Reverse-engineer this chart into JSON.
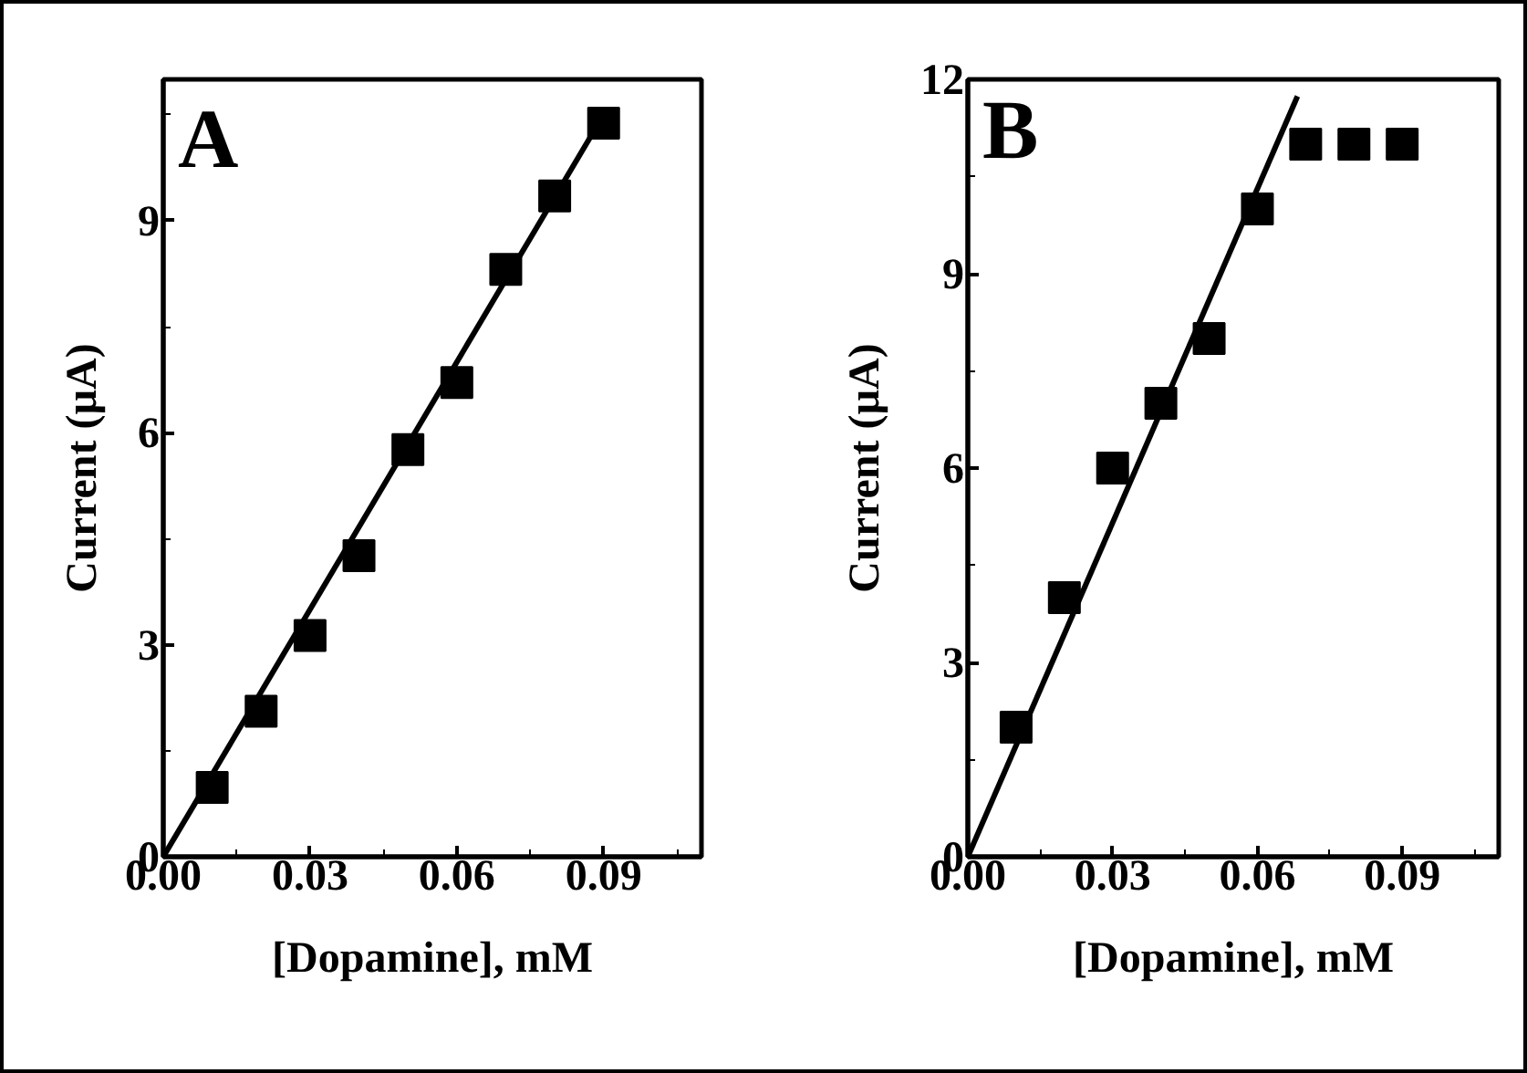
{
  "chart_data": [
    {
      "type": "scatter",
      "xlabel": "[Dopamine], mM",
      "ylabel": "Current (µA)",
      "annotations": [
        "A"
      ],
      "marker": "square",
      "grid": false,
      "xlim": [
        0,
        0.11
      ],
      "ylim": [
        0,
        11
      ],
      "xticks": [
        {
          "value": 0,
          "label": "0.00"
        },
        0.03,
        0.06,
        0.09
      ],
      "yticks": [
        0,
        3,
        6,
        9
      ],
      "series": [
        {
          "color": "#000000",
          "x": [
            0.01,
            0.02,
            0.03,
            0.04,
            0.05,
            0.06,
            0.07,
            0.08,
            0.09
          ],
          "values": [
            0.98,
            2.06,
            3.13,
            4.26,
            5.76,
            6.71,
            8.31,
            9.35,
            10.38
          ]
        },
        {
          "type": "line",
          "color": "#000000",
          "marker": "none",
          "x": [
            0,
            0.09
          ],
          "values": [
            0,
            10.5
          ]
        }
      ]
    },
    {
      "type": "scatter",
      "xlabel": "[Dopamine], mM",
      "ylabel": "Current (µA)",
      "annotations": [
        "B"
      ],
      "marker": "square",
      "grid": false,
      "xlim": [
        0,
        0.11
      ],
      "ylim": [
        0,
        12
      ],
      "xticks": [
        {
          "value": 0,
          "label": "0.00"
        },
        0.03,
        0.06,
        0.09
      ],
      "yticks": [
        0,
        3,
        6,
        9,
        12
      ],
      "series": [
        {
          "color": "#000000",
          "x": [
            0.01,
            0.02,
            0.03,
            0.04,
            0.05,
            0.06,
            0.07,
            0.08,
            0.09
          ],
          "values": [
            2,
            4,
            6,
            7,
            8,
            10,
            11,
            11,
            11
          ]
        },
        {
          "type": "line",
          "color": "#000000",
          "marker": "none",
          "x": [
            0,
            0.0683
          ],
          "values": [
            0,
            11.74
          ]
        }
      ]
    }
  ]
}
